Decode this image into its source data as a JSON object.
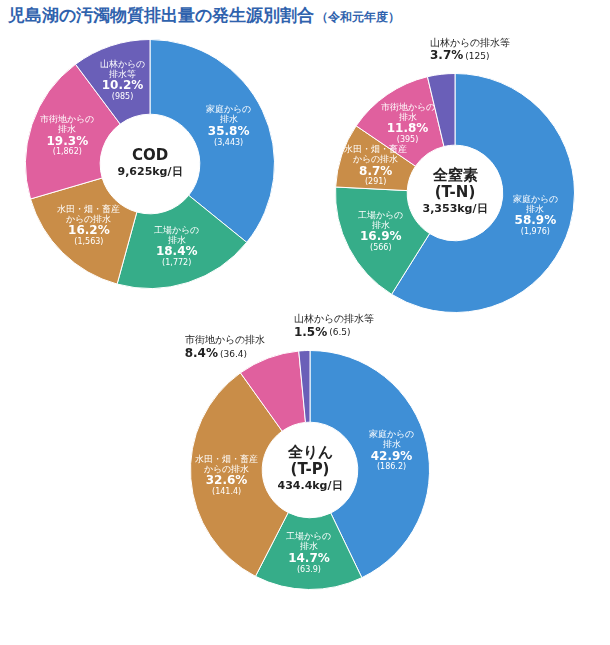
{
  "title": "児島湖の汚濁物質排出量の発生源別割合",
  "subtitle": "（令和元年度）",
  "chart_data": [
    {
      "type": "doughnut",
      "title": "COD",
      "total": 9625,
      "total_label": "9,625kg/日",
      "categories": [
        "家庭からの排水",
        "工場からの排水",
        "水田・畑・畜産からの排水",
        "市街地からの排水",
        "山林からの排水等"
      ],
      "values": [
        35.8,
        18.4,
        16.2,
        19.3,
        10.2
      ],
      "value_labels": [
        "35.8%",
        "18.4%",
        "16.2%",
        "19.3%",
        "10.2%"
      ],
      "amounts": [
        3443,
        1772,
        1563,
        1862,
        985
      ],
      "amount_labels": [
        "(3,443)",
        "(1,772)",
        "(1,563)",
        "(1,862)",
        "(985)"
      ],
      "colors": [
        "#3f8fd6",
        "#36ad89",
        "#c98d48",
        "#e0609e",
        "#6a5fb8"
      ],
      "data_labels": true
    },
    {
      "type": "doughnut",
      "title": "全窒素(T-N)",
      "total": 3353,
      "total_label": "3,353kg/日",
      "categories": [
        "家庭からの排水",
        "工場からの排水",
        "水田・畑・畜産からの排水",
        "市街地からの排水",
        "山林からの排水等"
      ],
      "values": [
        58.9,
        16.9,
        8.7,
        11.8,
        3.7
      ],
      "value_labels": [
        "58.9%",
        "16.9%",
        "8.7%",
        "11.8%",
        "3.7%"
      ],
      "amounts": [
        1976,
        566,
        291,
        395,
        125
      ],
      "amount_labels": [
        "(1,976)",
        "(566)",
        "(291)",
        "(395)",
        "(125)"
      ],
      "colors": [
        "#3f8fd6",
        "#36ad89",
        "#c98d48",
        "#e0609e",
        "#6a5fb8"
      ],
      "data_labels": true
    },
    {
      "type": "doughnut",
      "title": "全りん(T-P)",
      "total": 434.4,
      "total_label": "434.4kg/日",
      "categories": [
        "家庭からの排水",
        "工場からの排水",
        "水田・畑・畜産からの排水",
        "市街地からの排水",
        "山林からの排水等"
      ],
      "values": [
        42.9,
        14.7,
        32.6,
        8.4,
        1.5
      ],
      "value_labels": [
        "42.9%",
        "14.7%",
        "32.6%",
        "8.4%",
        "1.5%"
      ],
      "amounts": [
        186.2,
        63.9,
        141.4,
        36.4,
        6.5
      ],
      "amount_labels": [
        "(186.2)",
        "(63.9)",
        "(141.4)",
        "(36.4)",
        "(6.5)"
      ],
      "colors": [
        "#3f8fd6",
        "#36ad89",
        "#c98d48",
        "#e0609e",
        "#6a5fb8"
      ],
      "data_labels": true
    }
  ]
}
